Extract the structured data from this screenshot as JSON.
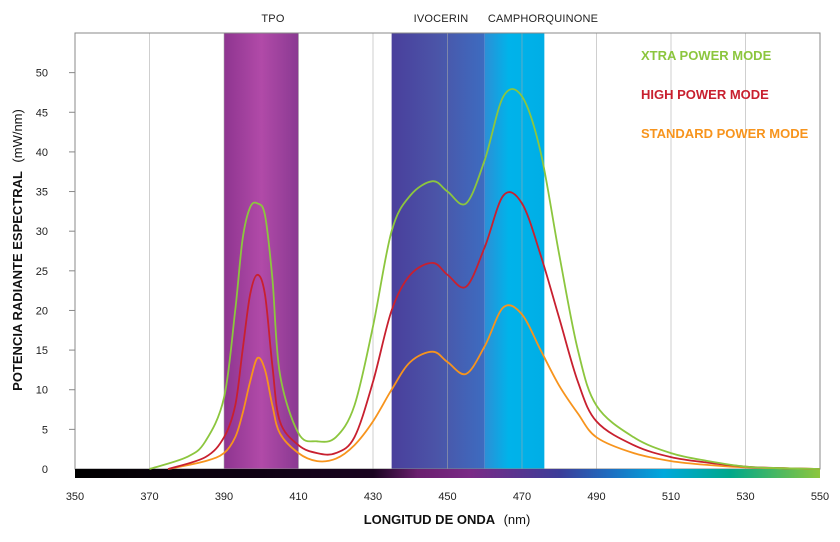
{
  "chart_data": {
    "type": "line",
    "xlabel_main": "LONGITUD DE ONDA",
    "xlabel_unit": "(nm)",
    "ylabel_main": "POTENCIA RADIANTE ESPECTRAL",
    "ylabel_unit": "(mW/nm)",
    "xlim": [
      350,
      550
    ],
    "ylim": [
      0,
      55
    ],
    "x_ticks": [
      350,
      370,
      390,
      410,
      430,
      450,
      470,
      490,
      510,
      530,
      550
    ],
    "y_ticks": [
      0,
      5,
      10,
      15,
      20,
      25,
      30,
      35,
      40,
      45,
      50
    ],
    "grid": true,
    "legend_position": "top-right",
    "bands": [
      {
        "label": "TPO",
        "range": [
          390,
          410
        ],
        "color": "#9b3a9a"
      },
      {
        "label": "IVOCERIN",
        "range": [
          435,
          460
        ],
        "color": "#4b4aa0"
      },
      {
        "label": "CAMPHORQUINONE",
        "range": [
          460,
          476
        ],
        "color": "#00aee8"
      }
    ],
    "series": [
      {
        "name": "XTRA POWER MODE",
        "color": "#8cc63e",
        "x": [
          370,
          380,
          385,
          390,
          393,
          395,
          397,
          399,
          401,
          403,
          405,
          410,
          415,
          420,
          425,
          430,
          435,
          440,
          446,
          450,
          455,
          460,
          465,
          470,
          475,
          480,
          485,
          490,
          500,
          510,
          520,
          530,
          540,
          550
        ],
        "y": [
          0,
          1.5,
          3.5,
          9,
          20,
          29,
          33,
          33.5,
          32,
          24,
          12,
          4.5,
          3.5,
          4,
          8,
          18,
          30,
          34.5,
          36.3,
          35,
          33.5,
          39,
          47,
          47,
          40,
          27,
          15,
          8,
          4,
          2,
          1,
          0.3,
          0.1,
          0
        ]
      },
      {
        "name": "HIGH POWER MODE",
        "color": "#c8202f",
        "x": [
          375,
          385,
          390,
          393,
          395,
          397,
          399,
          401,
          403,
          405,
          410,
          415,
          420,
          425,
          430,
          435,
          440,
          446,
          450,
          455,
          460,
          465,
          470,
          475,
          480,
          485,
          490,
          500,
          510,
          520,
          530,
          540,
          550
        ],
        "y": [
          0,
          1.5,
          4,
          8,
          15,
          22,
          24.5,
          22,
          13,
          6,
          3,
          2,
          2,
          4,
          11,
          20,
          24.5,
          26,
          24.5,
          23,
          28,
          34.5,
          33.5,
          27,
          19,
          11,
          6,
          3,
          1.5,
          0.8,
          0.3,
          0.1,
          0
        ]
      },
      {
        "name": "STANDARD POWER MODE",
        "color": "#f7941d",
        "x": [
          375,
          385,
          390,
          393,
          395,
          397,
          399,
          401,
          403,
          405,
          410,
          415,
          420,
          425,
          430,
          435,
          440,
          446,
          450,
          455,
          460,
          465,
          470,
          475,
          480,
          485,
          490,
          500,
          510,
          520,
          530,
          540,
          550
        ],
        "y": [
          0,
          1,
          2,
          4,
          7,
          11,
          14,
          12.5,
          8,
          4.5,
          2,
          1,
          1.3,
          3,
          6,
          10,
          13.5,
          14.8,
          13.5,
          12,
          15.5,
          20.4,
          19.5,
          15,
          10.5,
          7,
          4,
          2,
          1,
          0.5,
          0.2,
          0.1,
          0
        ]
      }
    ]
  }
}
